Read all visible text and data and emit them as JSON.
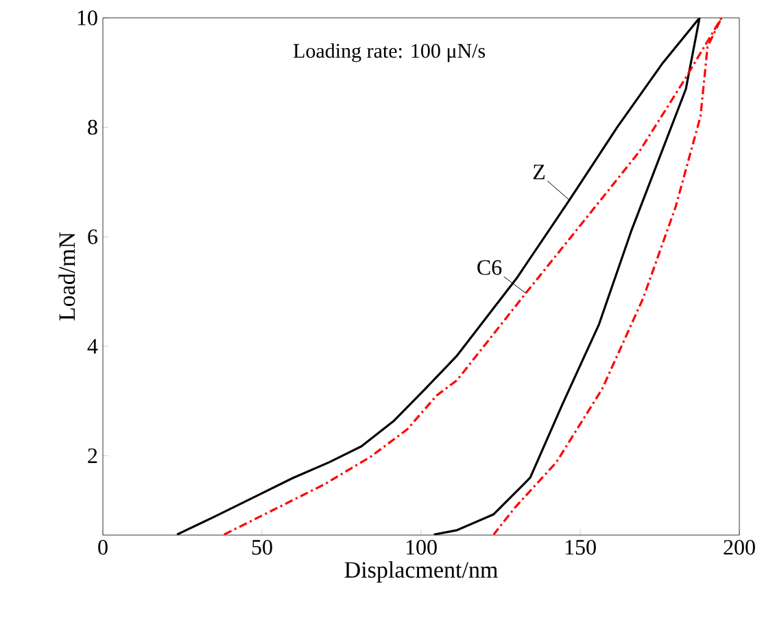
{
  "chart_data": {
    "type": "line",
    "xlabel": "Displacment/nm",
    "ylabel": "Load/mN",
    "annotations": [
      "Loading rate: 100 μN/s"
    ],
    "xlim": [
      0,
      200
    ],
    "ylim": [
      0.55,
      10
    ],
    "xticks": [
      0,
      50,
      100,
      150,
      200
    ],
    "yticks": [
      2,
      4,
      6,
      8,
      10
    ],
    "grid": false,
    "legend": false,
    "marker": "none",
    "series": [
      {
        "name": "Z",
        "color": "#000000",
        "line_style": "solid",
        "x": [
          23.3,
          35.2,
          48.1,
          59.6,
          71.1,
          81.2,
          91.3,
          101.3,
          111.3,
          130,
          146.6,
          161.6,
          176,
          187.5,
          183.2,
          174.6,
          166,
          155.9,
          144.4,
          134.3,
          122.8,
          111.3,
          104
        ],
        "values": [
          0.56,
          0.89,
          1.26,
          1.59,
          1.88,
          2.17,
          2.63,
          3.22,
          3.83,
          5.24,
          6.67,
          8.0,
          9.18,
          10,
          8.7,
          7.4,
          6.1,
          4.4,
          2.94,
          1.6,
          0.93,
          0.64,
          0.56
        ]
      },
      {
        "name": "C6",
        "color": "#ff0000",
        "line_style": "dashdot",
        "x": [
          38.1,
          55.3,
          69.7,
          84.1,
          95.6,
          104.9,
          111.3,
          132.9,
          151.3,
          168.5,
          182.9,
          194.4,
          190,
          187.8,
          180,
          169.8,
          156.9,
          142.5,
          129.6,
          122.8
        ],
        "values": [
          0.56,
          1.06,
          1.48,
          1.98,
          2.48,
          3.1,
          3.38,
          4.97,
          6.3,
          7.55,
          8.88,
          10,
          9.47,
          8.2,
          6.55,
          4.88,
          3.22,
          1.88,
          1.06,
          0.56
        ]
      }
    ]
  }
}
